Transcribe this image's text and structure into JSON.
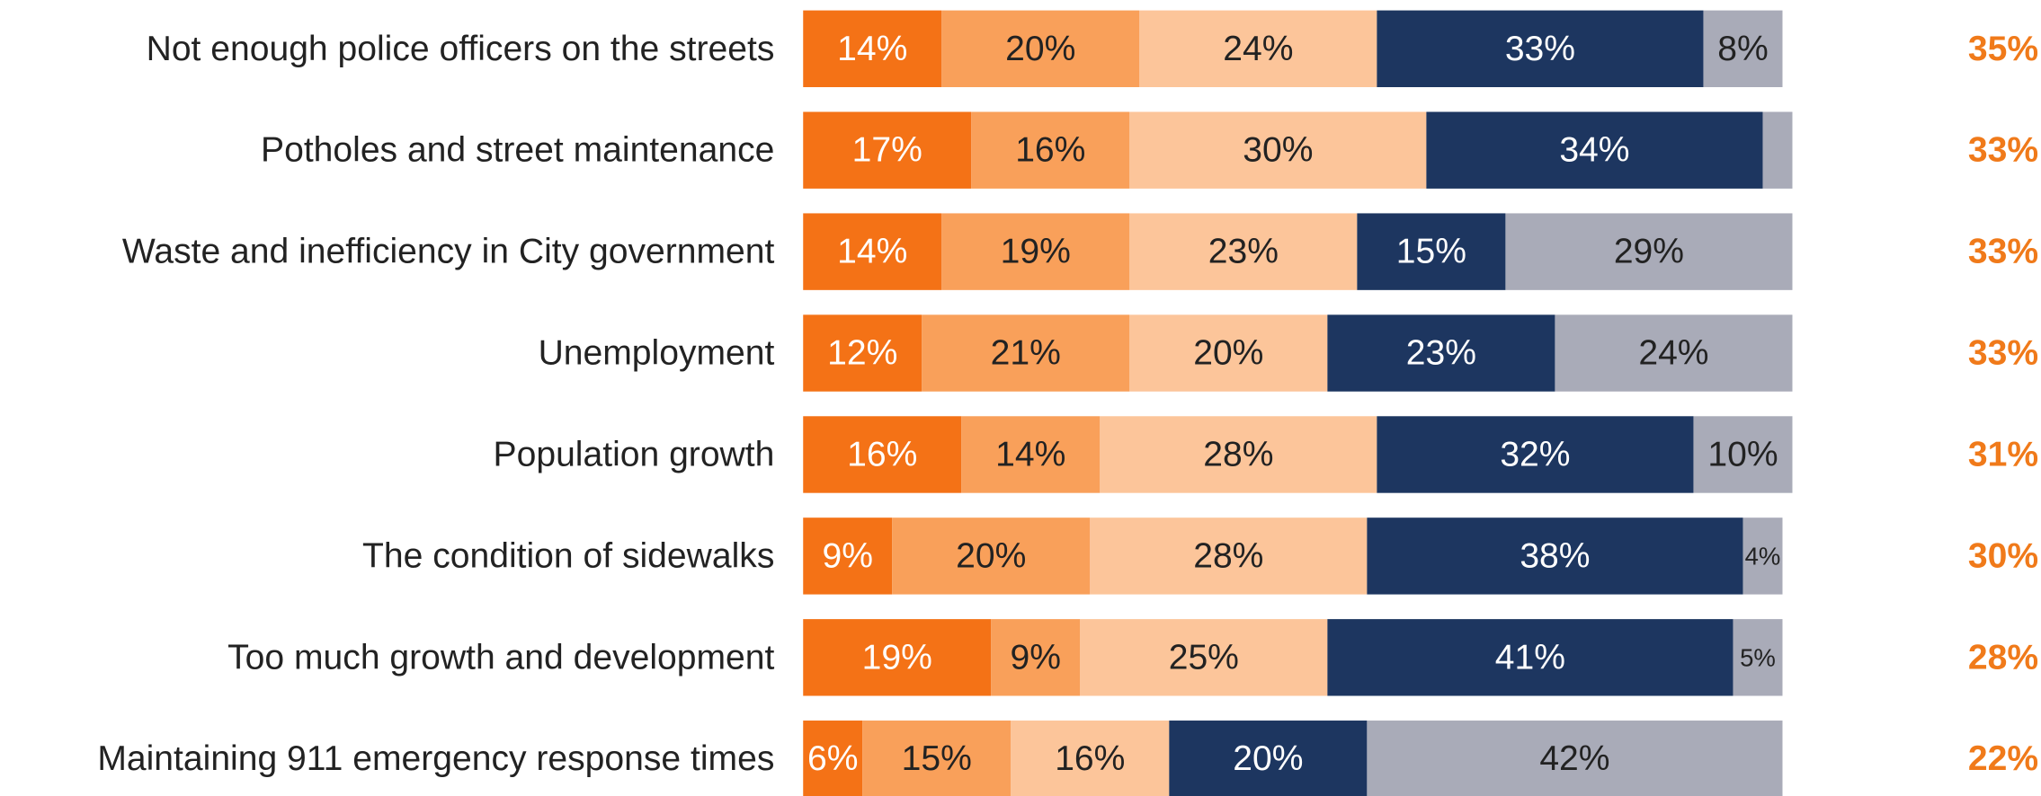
{
  "chart_data": {
    "type": "stacked-barh",
    "categories": [
      "Not enough police officers on the streets",
      "Potholes and street maintenance",
      "Waste and inefficiency in City government",
      "Unemployment",
      "Population growth",
      "The condition of sidewalks",
      "Too much growth and development",
      "Maintaining 911 emergency response times"
    ],
    "xlim": [
      0,
      100
    ],
    "series": [
      {
        "color": "#f47216",
        "text_color": "#ffffff",
        "values": [
          14,
          17,
          14,
          12,
          16,
          9,
          19,
          6
        ],
        "value_labels": [
          "14%",
          "17%",
          "14%",
          "12%",
          "16%",
          "9%",
          "19%",
          "6%"
        ]
      },
      {
        "color": "#f9a05a",
        "text_color": "#222222",
        "values": [
          20,
          16,
          19,
          21,
          14,
          20,
          9,
          15
        ],
        "value_labels": [
          "20%",
          "16%",
          "19%",
          "21%",
          "14%",
          "20%",
          "9%",
          "15%"
        ]
      },
      {
        "color": "#fcc59a",
        "text_color": "#222222",
        "values": [
          24,
          30,
          23,
          20,
          28,
          28,
          25,
          16
        ],
        "value_labels": [
          "24%",
          "30%",
          "23%",
          "20%",
          "28%",
          "28%",
          "25%",
          "16%"
        ]
      },
      {
        "color": "#1d3660",
        "text_color": "#ffffff",
        "values": [
          33,
          34,
          15,
          23,
          32,
          38,
          41,
          20
        ],
        "value_labels": [
          "33%",
          "34%",
          "15%",
          "23%",
          "32%",
          "38%",
          "41%",
          "20%"
        ]
      },
      {
        "color": "#a9abb8",
        "text_color": "#222222",
        "values": [
          8,
          3,
          29,
          24,
          10,
          4,
          5,
          42
        ],
        "value_labels": [
          "8%",
          null,
          "29%",
          "24%",
          "10%",
          "4%",
          "5%",
          "42%"
        ]
      }
    ],
    "totals": {
      "color": "#f07a1a",
      "values": [
        35,
        33,
        33,
        33,
        31,
        30,
        28,
        22
      ],
      "value_labels": [
        "35%",
        "33%",
        "33%",
        "33%",
        "31%",
        "30%",
        "28%",
        "22%"
      ]
    }
  }
}
